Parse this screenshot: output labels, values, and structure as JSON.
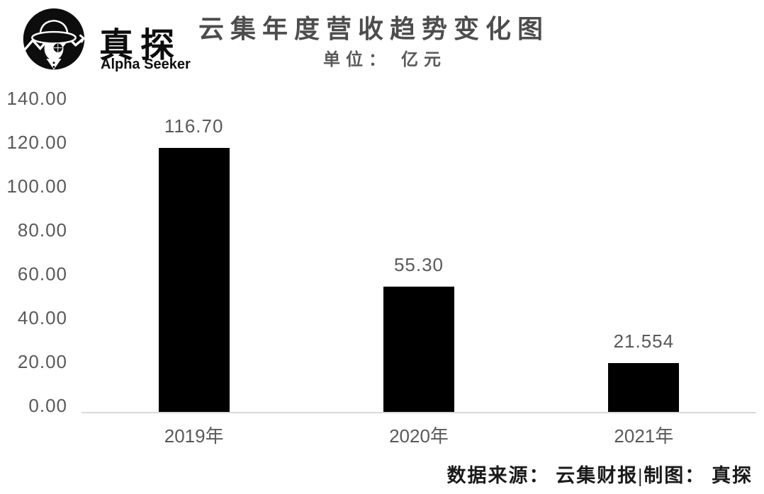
{
  "brand": {
    "name": "真探",
    "subtitle": "Alpha Seeker"
  },
  "header": {
    "title": "云集年度营收趋势变化图",
    "unit_label": "单位： 亿元"
  },
  "chart_data": {
    "type": "bar",
    "title": "云集年度营收趋势变化图",
    "subtitle": "单位：亿元",
    "categories": [
      "2019年",
      "2020年",
      "2021年"
    ],
    "values": [
      116.7,
      55.3,
      21.554
    ],
    "value_labels": [
      "116.70",
      "55.30",
      "21.554"
    ],
    "xlabel": "",
    "ylabel": "",
    "ylim": [
      0,
      140
    ],
    "ytick_step": 20,
    "yticks": [
      "0.00",
      "20.00",
      "40.00",
      "60.00",
      "80.00",
      "100.00",
      "120.00",
      "140.00"
    ],
    "grid": false,
    "legend": false,
    "bar_color": "#000000",
    "axis_line_color": "#d9d9d9",
    "text_color": "#595959"
  },
  "footer": {
    "text": "数据来源： 云集财报|制图： 真探"
  }
}
